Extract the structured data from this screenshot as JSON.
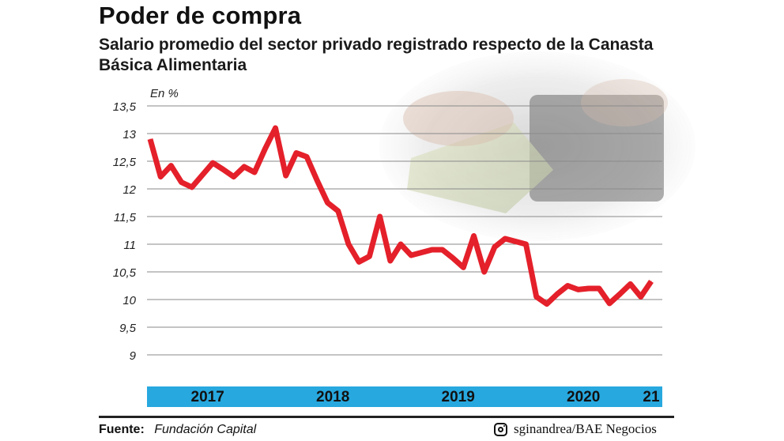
{
  "header": {
    "title": "Poder de compra",
    "subtitle": "Salario promedio del sector privado registrado respecto de la Canasta Básica Alimentaria"
  },
  "chart_data": {
    "type": "line",
    "title": "Poder de compra",
    "subtitle": "Salario promedio del sector privado registrado respecto de la Canasta Básica Alimentaria",
    "unit_label": "En %",
    "xlabel": "",
    "ylabel": "",
    "ylim": [
      9,
      13.5
    ],
    "y_ticks": [
      13.5,
      13,
      12.5,
      12,
      11.5,
      11,
      10.5,
      10,
      9.5,
      9
    ],
    "y_tick_labels": [
      "13,5",
      "13",
      "12,5",
      "12",
      "11,5",
      "11",
      "10,5",
      "10",
      "9,5",
      "9"
    ],
    "grid": true,
    "year_labels": [
      {
        "label": "2017",
        "start_index": 0
      },
      {
        "label": "2018",
        "start_index": 12
      },
      {
        "label": "2019",
        "start_index": 24
      },
      {
        "label": "2020",
        "start_index": 36
      },
      {
        "label": "21",
        "start_index": 48
      }
    ],
    "series": [
      {
        "color": "#e4202a",
        "values": [
          12.9,
          12.22,
          12.42,
          12.12,
          12.03,
          12.25,
          12.47,
          12.35,
          12.22,
          12.4,
          12.3,
          12.72,
          13.1,
          12.24,
          12.65,
          12.58,
          12.15,
          11.75,
          11.6,
          11.0,
          10.68,
          10.78,
          11.5,
          10.7,
          11.0,
          10.8,
          10.85,
          10.9,
          10.9,
          10.75,
          10.58,
          11.15,
          10.5,
          10.95,
          11.1,
          11.05,
          11.0,
          10.05,
          9.92,
          10.1,
          10.25,
          10.18,
          10.2,
          10.2,
          9.93,
          10.1,
          10.28,
          10.05,
          10.33
        ]
      }
    ],
    "line_color": "#e4202a",
    "band_color": "#27a8df"
  },
  "footer": {
    "source_label": "Fuente:",
    "source_value": "Fundación Capital",
    "credit": "sginandrea/BAE Negocios",
    "credit_icon": "instagram-icon"
  }
}
